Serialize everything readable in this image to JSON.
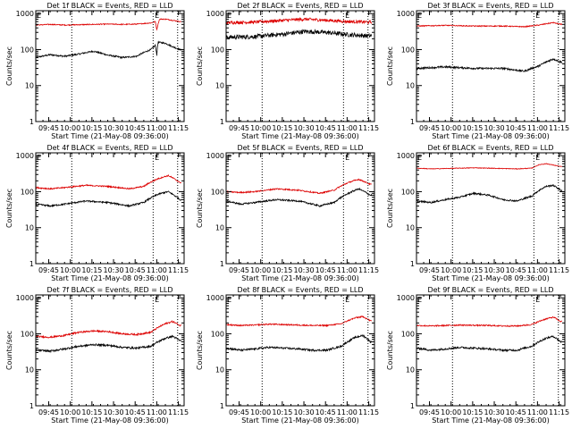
{
  "figure": {
    "tick_font_px": 8,
    "label_font_px": 8,
    "title_font_px": 8
  },
  "chart_data": [
    {
      "type": "line",
      "title": "Det 1f BLACK = Events, RED = LLD",
      "xlabel": "Start Time (21-May-08 09:36:00)",
      "ylabel": "Counts/sec",
      "yscale": "log",
      "ylim": [
        1,
        1200
      ],
      "xtick_labels": [
        "09:45",
        "10:00",
        "10:15",
        "10:30",
        "10:45",
        "11:00",
        "11:15"
      ],
      "xtick_minutes": [
        9,
        24,
        39,
        54,
        69,
        84,
        99
      ],
      "xlim_minutes": [
        0,
        103
      ],
      "vlines_minutes": [
        25,
        81.5,
        98.5
      ],
      "flag_labels": [
        {
          "text": "E",
          "minute": 0
        },
        {
          "text": "E",
          "minute": 82
        }
      ],
      "series": [
        {
          "name": "Events",
          "color": "#000000",
          "x": [
            0,
            10,
            20,
            30,
            40,
            50,
            60,
            70,
            80,
            83,
            84,
            85,
            90,
            95,
            100
          ],
          "y": [
            60,
            72,
            65,
            75,
            90,
            70,
            60,
            65,
            100,
            130,
            70,
            160,
            150,
            120,
            100
          ],
          "noise": 0.05
        },
        {
          "name": "LLD",
          "color": "#dd0000",
          "x": [
            0,
            10,
            20,
            30,
            40,
            50,
            60,
            70,
            80,
            83,
            84,
            86,
            90,
            100
          ],
          "y": [
            480,
            500,
            480,
            490,
            500,
            510,
            500,
            510,
            550,
            600,
            350,
            700,
            700,
            600
          ],
          "noise": 0.03
        }
      ]
    },
    {
      "type": "line",
      "title": "Det 2f BLACK = Events, RED = LLD",
      "xlabel": "Start Time (21-May-08 09:36:00)",
      "ylabel": "Counts/sec",
      "yscale": "log",
      "ylim": [
        1,
        1200
      ],
      "xtick_labels": [
        "09:45",
        "10:00",
        "10:15",
        "10:30",
        "10:45",
        "11:00",
        "11:15"
      ],
      "xtick_minutes": [
        9,
        24,
        39,
        54,
        69,
        84,
        99
      ],
      "xlim_minutes": [
        0,
        103
      ],
      "vlines_minutes": [
        25,
        81.5,
        98.5
      ],
      "flag_labels": [
        {
          "text": "E",
          "minute": 0
        },
        {
          "text": "E",
          "minute": 82
        }
      ],
      "series": [
        {
          "name": "Events",
          "color": "#000000",
          "x": [
            0,
            20,
            40,
            55,
            70,
            85,
            100
          ],
          "y": [
            220,
            230,
            270,
            320,
            300,
            260,
            240
          ],
          "noise": 0.14
        },
        {
          "name": "LLD",
          "color": "#dd0000",
          "x": [
            0,
            20,
            40,
            55,
            70,
            85,
            100
          ],
          "y": [
            560,
            580,
            650,
            700,
            650,
            600,
            580
          ],
          "noise": 0.1
        }
      ]
    },
    {
      "type": "line",
      "title": "Det 3f BLACK = Events, RED = LLD",
      "xlabel": "Start Time (21-May-08 09:36:00)",
      "ylabel": "Counts/sec",
      "yscale": "log",
      "ylim": [
        1,
        1200
      ],
      "xtick_labels": [
        "09:45",
        "10:00",
        "10:15",
        "10:30",
        "10:45",
        "11:00",
        "11:15"
      ],
      "xtick_minutes": [
        9,
        24,
        39,
        54,
        69,
        84,
        99
      ],
      "xlim_minutes": [
        0,
        103
      ],
      "vlines_minutes": [
        25,
        81.5,
        98.5
      ],
      "flag_labels": [
        {
          "text": "E",
          "minute": 0
        },
        {
          "text": "E",
          "minute": 82
        }
      ],
      "series": [
        {
          "name": "Events",
          "color": "#000000",
          "x": [
            0,
            20,
            40,
            60,
            75,
            85,
            95,
            100
          ],
          "y": [
            30,
            33,
            30,
            30,
            25,
            35,
            55,
            45
          ],
          "noise": 0.06
        },
        {
          "name": "LLD",
          "color": "#dd0000",
          "x": [
            0,
            20,
            40,
            60,
            75,
            85,
            95,
            100
          ],
          "y": [
            450,
            470,
            450,
            450,
            430,
            480,
            560,
            500
          ],
          "noise": 0.03
        }
      ]
    },
    {
      "type": "line",
      "title": "Det 4f BLACK = Events, RED = LLD",
      "xlabel": "Start Time (21-May-08 09:36:00)",
      "ylabel": "Counts/sec",
      "yscale": "log",
      "ylim": [
        1,
        1200
      ],
      "xtick_labels": [
        "09:45",
        "10:00",
        "10:15",
        "10:30",
        "10:45",
        "11:00",
        "11:15"
      ],
      "xtick_minutes": [
        9,
        24,
        39,
        54,
        69,
        84,
        99
      ],
      "xlim_minutes": [
        0,
        103
      ],
      "vlines_minutes": [
        25,
        81.5,
        98.5
      ],
      "flag_labels": [
        {
          "text": "E",
          "minute": 0
        },
        {
          "text": "E",
          "minute": 82
        }
      ],
      "series": [
        {
          "name": "Events",
          "color": "#000000",
          "x": [
            0,
            10,
            20,
            35,
            50,
            65,
            75,
            85,
            92,
            100
          ],
          "y": [
            45,
            40,
            45,
            55,
            50,
            40,
            50,
            85,
            100,
            60
          ],
          "noise": 0.05
        },
        {
          "name": "LLD",
          "color": "#dd0000",
          "x": [
            0,
            10,
            20,
            35,
            50,
            65,
            75,
            85,
            92,
            100
          ],
          "y": [
            130,
            120,
            130,
            150,
            140,
            120,
            140,
            230,
            280,
            180
          ],
          "noise": 0.04
        }
      ]
    },
    {
      "type": "line",
      "title": "Det 5f BLACK = Events, RED = LLD",
      "xlabel": "Start Time (21-May-08 09:36:00)",
      "ylabel": "Counts/sec",
      "yscale": "log",
      "ylim": [
        1,
        1200
      ],
      "xtick_labels": [
        "09:45",
        "10:00",
        "10:15",
        "10:30",
        "10:45",
        "11:00",
        "11:15"
      ],
      "xtick_minutes": [
        9,
        24,
        39,
        54,
        69,
        84,
        99
      ],
      "xlim_minutes": [
        0,
        103
      ],
      "vlines_minutes": [
        25,
        81.5,
        98.5
      ],
      "flag_labels": [
        {
          "text": "E",
          "minute": 0
        },
        {
          "text": "E",
          "minute": 82
        }
      ],
      "series": [
        {
          "name": "Events",
          "color": "#000000",
          "x": [
            0,
            10,
            20,
            35,
            50,
            65,
            75,
            85,
            92,
            100
          ],
          "y": [
            55,
            45,
            50,
            60,
            55,
            40,
            50,
            90,
            120,
            80
          ],
          "noise": 0.05
        },
        {
          "name": "LLD",
          "color": "#dd0000",
          "x": [
            0,
            10,
            20,
            35,
            50,
            65,
            75,
            85,
            92,
            100
          ],
          "y": [
            100,
            95,
            100,
            120,
            110,
            90,
            110,
            180,
            220,
            160
          ],
          "noise": 0.04
        }
      ]
    },
    {
      "type": "line",
      "title": "Det 6f BLACK = Events, RED = LLD",
      "xlabel": "Start Time (21-May-08 09:36:00)",
      "ylabel": "Counts/sec",
      "yscale": "log",
      "ylim": [
        1,
        1200
      ],
      "xtick_labels": [
        "09:45",
        "10:00",
        "10:15",
        "10:30",
        "10:45",
        "11:00",
        "11:15"
      ],
      "xtick_minutes": [
        9,
        24,
        39,
        54,
        69,
        84,
        99
      ],
      "xlim_minutes": [
        0,
        103
      ],
      "vlines_minutes": [
        25,
        81.5,
        98.5
      ],
      "flag_labels": [
        {
          "text": "E",
          "minute": 0
        },
        {
          "text": "E",
          "minute": 82
        }
      ],
      "series": [
        {
          "name": "Events",
          "color": "#000000",
          "x": [
            0,
            10,
            20,
            30,
            40,
            50,
            60,
            70,
            80,
            90,
            95,
            100
          ],
          "y": [
            55,
            50,
            60,
            70,
            90,
            80,
            60,
            55,
            75,
            140,
            150,
            110
          ],
          "noise": 0.05
        },
        {
          "name": "LLD",
          "color": "#dd0000",
          "x": [
            0,
            10,
            20,
            30,
            40,
            50,
            60,
            70,
            80,
            85,
            90,
            100
          ],
          "y": [
            450,
            430,
            440,
            450,
            460,
            450,
            440,
            430,
            450,
            560,
            600,
            500
          ],
          "noise": 0.02
        }
      ]
    },
    {
      "type": "line",
      "title": "Det 7f BLACK = Events, RED = LLD",
      "xlabel": "Start Time (21-May-08 09:36:00)",
      "ylabel": "Counts/sec",
      "yscale": "log",
      "ylim": [
        1,
        1200
      ],
      "xtick_labels": [
        "09:45",
        "10:00",
        "10:15",
        "10:30",
        "10:45",
        "11:00",
        "11:15"
      ],
      "xtick_minutes": [
        9,
        24,
        39,
        54,
        69,
        84,
        99
      ],
      "xlim_minutes": [
        0,
        103
      ],
      "vlines_minutes": [
        25,
        81.5,
        98.5
      ],
      "flag_labels": [
        {
          "text": "E",
          "minute": 0
        },
        {
          "text": "E",
          "minute": 82
        }
      ],
      "series": [
        {
          "name": "Events",
          "color": "#000000",
          "x": [
            0,
            10,
            20,
            30,
            40,
            50,
            60,
            70,
            80,
            90,
            95,
            100
          ],
          "y": [
            35,
            33,
            38,
            45,
            50,
            48,
            42,
            40,
            45,
            75,
            85,
            65
          ],
          "noise": 0.06
        },
        {
          "name": "LLD",
          "color": "#dd0000",
          "x": [
            0,
            10,
            20,
            30,
            40,
            50,
            60,
            70,
            80,
            90,
            95,
            100
          ],
          "y": [
            85,
            80,
            90,
            110,
            120,
            115,
            100,
            95,
            110,
            190,
            220,
            170
          ],
          "noise": 0.05
        }
      ]
    },
    {
      "type": "line",
      "title": "Det 8f BLACK = Events, RED = LLD",
      "xlabel": "Start Time (21-May-08 09:36:00)",
      "ylabel": "Counts/sec",
      "yscale": "log",
      "ylim": [
        1,
        1200
      ],
      "xtick_labels": [
        "09:45",
        "10:00",
        "10:15",
        "10:30",
        "10:45",
        "11:00",
        "11:15"
      ],
      "xtick_minutes": [
        9,
        24,
        39,
        54,
        69,
        84,
        99
      ],
      "xlim_minutes": [
        0,
        103
      ],
      "vlines_minutes": [
        25,
        81.5,
        98.5
      ],
      "flag_labels": [
        {
          "text": "E",
          "minute": 0
        },
        {
          "text": "E",
          "minute": 82
        }
      ],
      "series": [
        {
          "name": "Events",
          "color": "#000000",
          "x": [
            0,
            10,
            20,
            30,
            40,
            50,
            60,
            70,
            80,
            90,
            95,
            100
          ],
          "y": [
            40,
            35,
            38,
            42,
            40,
            38,
            35,
            35,
            45,
            80,
            90,
            60
          ],
          "noise": 0.06
        },
        {
          "name": "LLD",
          "color": "#dd0000",
          "x": [
            0,
            10,
            20,
            30,
            40,
            50,
            60,
            70,
            80,
            90,
            95,
            100
          ],
          "y": [
            180,
            170,
            175,
            185,
            180,
            175,
            170,
            170,
            190,
            280,
            300,
            230
          ],
          "noise": 0.04
        }
      ]
    },
    {
      "type": "line",
      "title": "Det 9f BLACK = Events, RED = LLD",
      "xlabel": "Start Time (21-May-08 09:36:00)",
      "ylabel": "Counts/sec",
      "yscale": "log",
      "ylim": [
        1,
        1200
      ],
      "xtick_labels": [
        "09:45",
        "10:00",
        "10:15",
        "10:30",
        "10:45",
        "11:00",
        "11:15"
      ],
      "xtick_minutes": [
        9,
        24,
        39,
        54,
        69,
        84,
        99
      ],
      "xlim_minutes": [
        0,
        103
      ],
      "vlines_minutes": [
        25,
        81.5,
        98.5
      ],
      "flag_labels": [
        {
          "text": "E",
          "minute": 0
        },
        {
          "text": "E",
          "minute": 82
        }
      ],
      "series": [
        {
          "name": "Events",
          "color": "#000000",
          "x": [
            0,
            10,
            20,
            30,
            40,
            50,
            60,
            70,
            80,
            90,
            95,
            100
          ],
          "y": [
            40,
            35,
            38,
            42,
            40,
            38,
            35,
            35,
            45,
            75,
            85,
            60
          ],
          "noise": 0.06
        },
        {
          "name": "LLD",
          "color": "#dd0000",
          "x": [
            0,
            10,
            20,
            30,
            40,
            50,
            60,
            70,
            80,
            90,
            95,
            100
          ],
          "y": [
            170,
            165,
            170,
            175,
            172,
            170,
            165,
            165,
            180,
            260,
            290,
            220
          ],
          "noise": 0.04
        }
      ]
    }
  ]
}
